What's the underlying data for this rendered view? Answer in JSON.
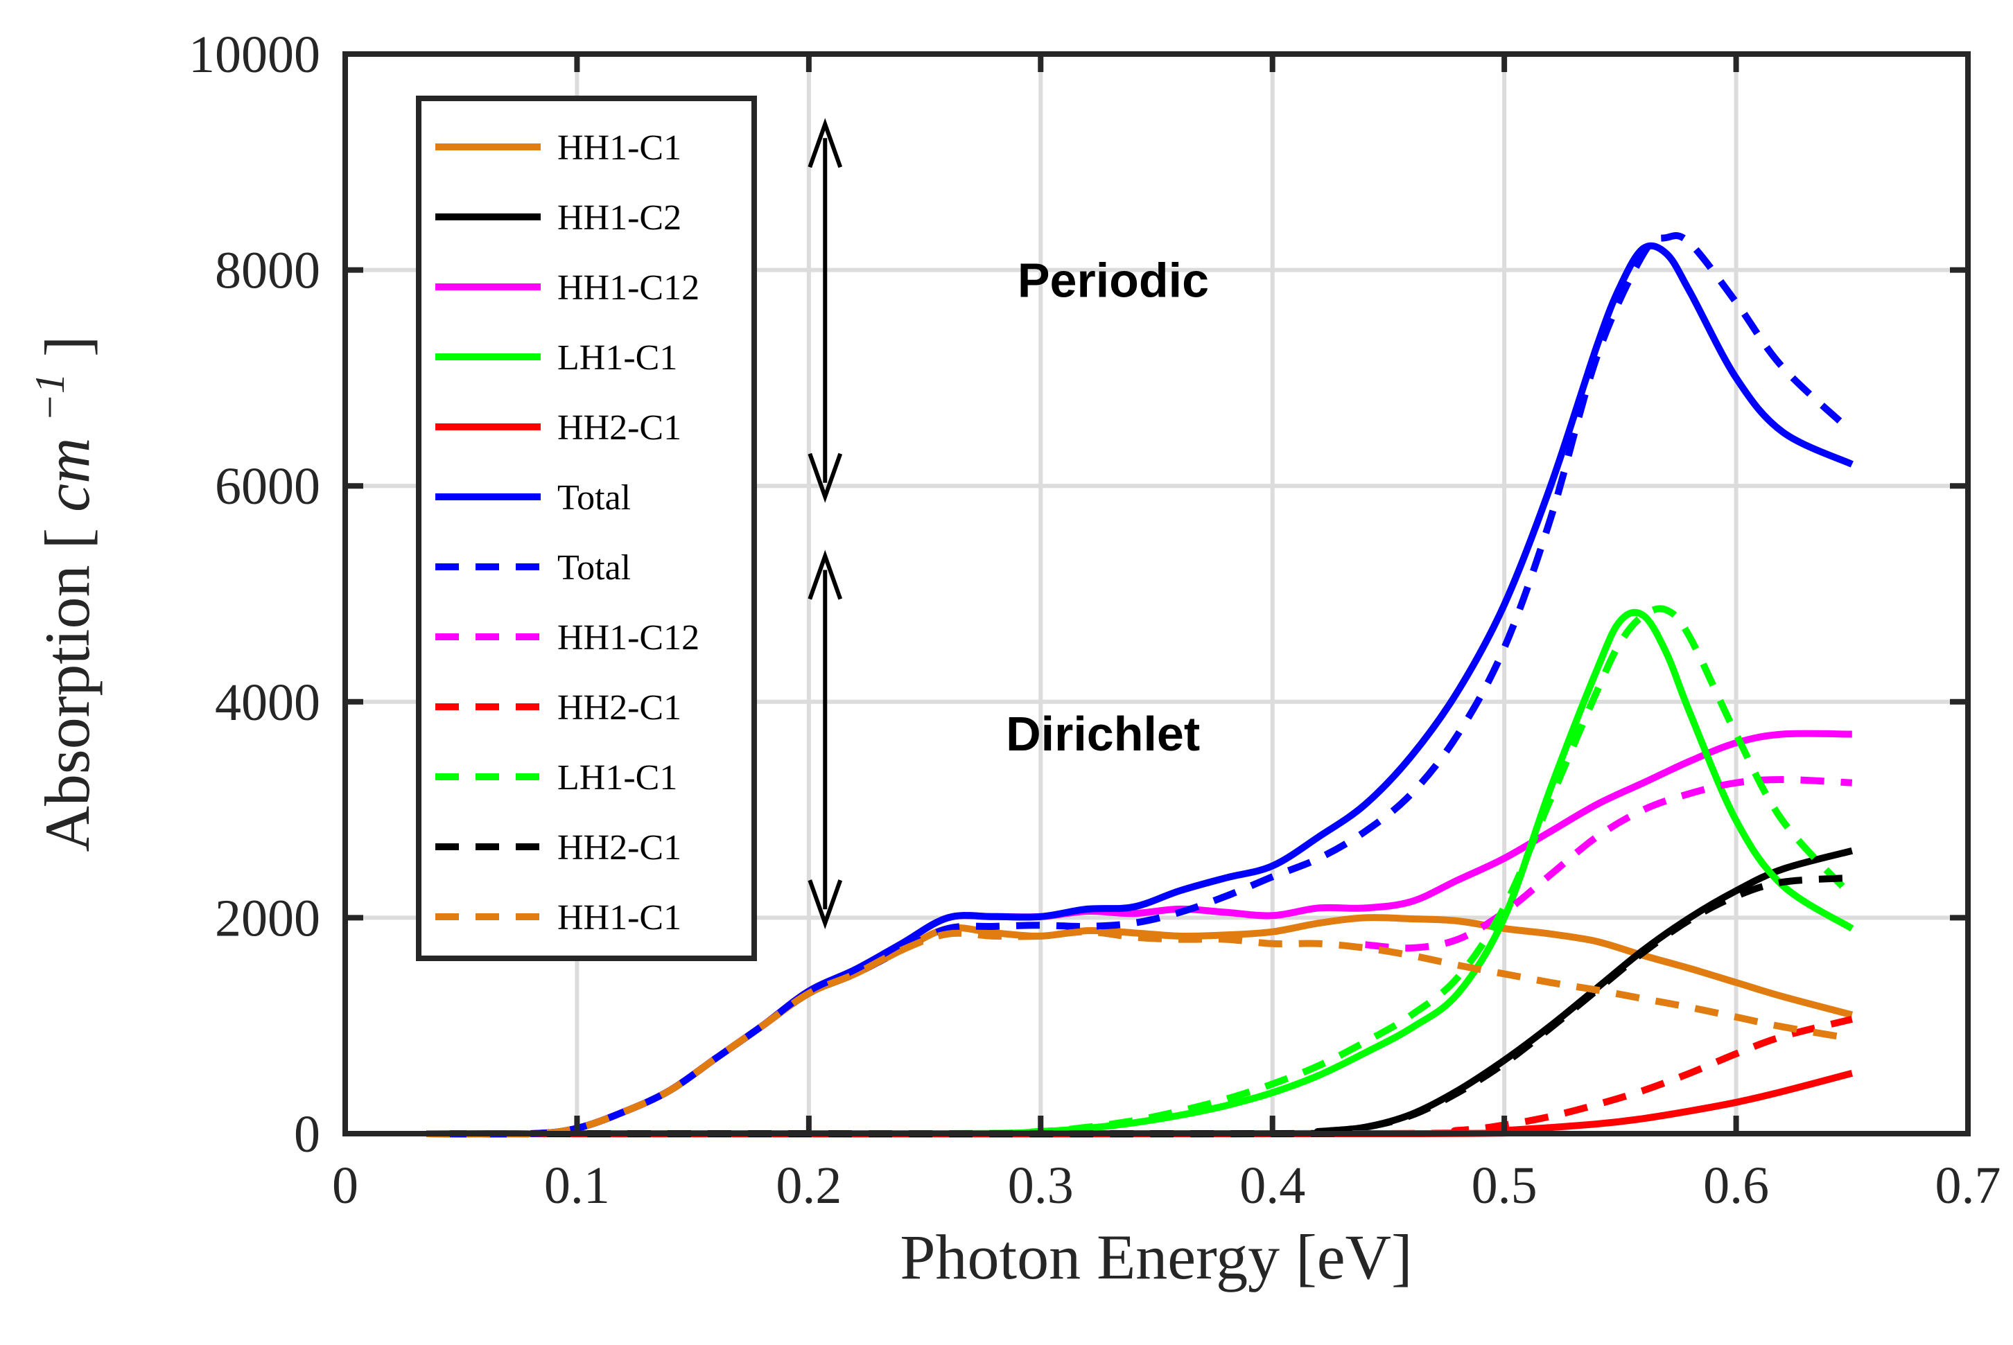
{
  "chart_data": {
    "type": "line",
    "title": "",
    "xlabel": "Photon Energy [eV]",
    "ylabel_text": "Absorption",
    "ylabel_unit": "cm",
    "ylabel_exponent": "−1",
    "xlim": [
      0,
      0.7
    ],
    "ylim": [
      0,
      10000
    ],
    "xticks": [
      0,
      0.1,
      0.2,
      0.3,
      0.4,
      0.5,
      0.6,
      0.7
    ],
    "xtick_labels": [
      "0",
      "0.1",
      "0.2",
      "0.3",
      "0.4",
      "0.5",
      "0.6",
      "0.7"
    ],
    "yticks": [
      0,
      2000,
      4000,
      6000,
      8000,
      10000
    ],
    "ytick_labels": [
      "0",
      "2000",
      "4000",
      "6000",
      "8000",
      "10000"
    ],
    "grid": true,
    "legend_position": "top-left",
    "annotations": [
      {
        "id": "periodic",
        "text": "Periodic",
        "x": 0.29,
        "y": 7750
      },
      {
        "id": "dirichlet",
        "text": "Dirichlet",
        "x": 0.285,
        "y": 3550
      }
    ],
    "arrows": [
      {
        "id": "periodic-arrow",
        "x": 0.207,
        "y1": 5900,
        "y2": 9350
      },
      {
        "id": "dirichlet-arrow",
        "x": 0.207,
        "y1": 1950,
        "y2": 5350
      }
    ],
    "series": [
      {
        "name": "HH1-C1",
        "style": "solid",
        "color": "#E07C10",
        "x": [
          0.035,
          0.08,
          0.1,
          0.12,
          0.14,
          0.16,
          0.18,
          0.2,
          0.22,
          0.24,
          0.26,
          0.28,
          0.3,
          0.32,
          0.34,
          0.36,
          0.38,
          0.4,
          0.42,
          0.44,
          0.46,
          0.48,
          0.5,
          0.52,
          0.54,
          0.56,
          0.58,
          0.6,
          0.62,
          0.65
        ],
        "y": [
          0,
          0,
          50,
          200,
          400,
          700,
          1000,
          1300,
          1480,
          1700,
          1900,
          1860,
          1830,
          1880,
          1860,
          1830,
          1840,
          1870,
          1950,
          2000,
          1990,
          1970,
          1900,
          1850,
          1780,
          1650,
          1530,
          1400,
          1270,
          1100
        ]
      },
      {
        "name": "HH1-C2",
        "style": "solid",
        "color": "#000000",
        "x": [
          0.035,
          0.4,
          0.42,
          0.44,
          0.46,
          0.48,
          0.5,
          0.52,
          0.54,
          0.56,
          0.58,
          0.6,
          0.62,
          0.65
        ],
        "y": [
          0,
          0,
          20,
          60,
          180,
          400,
          680,
          1000,
          1350,
          1700,
          2000,
          2250,
          2450,
          2620
        ]
      },
      {
        "name": "HH1-C12",
        "style": "solid",
        "color": "#FF00FF",
        "x": [
          0.035,
          0.08,
          0.1,
          0.12,
          0.14,
          0.16,
          0.18,
          0.2,
          0.22,
          0.24,
          0.26,
          0.28,
          0.3,
          0.32,
          0.34,
          0.36,
          0.38,
          0.4,
          0.42,
          0.44,
          0.46,
          0.48,
          0.5,
          0.52,
          0.54,
          0.56,
          0.58,
          0.6,
          0.62,
          0.65
        ],
        "y": [
          0,
          0,
          50,
          200,
          400,
          700,
          1000,
          1320,
          1520,
          1760,
          2000,
          2010,
          2010,
          2060,
          2040,
          2080,
          2050,
          2020,
          2090,
          2090,
          2150,
          2350,
          2550,
          2800,
          3050,
          3250,
          3450,
          3620,
          3700,
          3700
        ]
      },
      {
        "name": "LH1-C1",
        "style": "solid",
        "color": "#00FF00",
        "x": [
          0.035,
          0.26,
          0.3,
          0.32,
          0.34,
          0.36,
          0.38,
          0.4,
          0.42,
          0.44,
          0.46,
          0.48,
          0.5,
          0.52,
          0.54,
          0.55,
          0.56,
          0.57,
          0.58,
          0.6,
          0.62,
          0.65
        ],
        "y": [
          0,
          0,
          20,
          50,
          100,
          170,
          260,
          380,
          540,
          750,
          980,
          1300,
          2000,
          3200,
          4300,
          4750,
          4800,
          4450,
          3900,
          2900,
          2300,
          1900
        ]
      },
      {
        "name": "HH2-C1",
        "style": "solid",
        "color": "#FF0000",
        "x": [
          0.035,
          0.46,
          0.5,
          0.54,
          0.56,
          0.58,
          0.6,
          0.62,
          0.65
        ],
        "y": [
          0,
          0,
          30,
          90,
          140,
          210,
          290,
          390,
          560
        ]
      },
      {
        "name": "Total",
        "style": "solid",
        "color": "#0000FF",
        "x": [
          0.035,
          0.08,
          0.1,
          0.12,
          0.14,
          0.16,
          0.18,
          0.2,
          0.22,
          0.24,
          0.26,
          0.28,
          0.3,
          0.32,
          0.34,
          0.36,
          0.38,
          0.4,
          0.42,
          0.44,
          0.46,
          0.48,
          0.5,
          0.52,
          0.54,
          0.55,
          0.56,
          0.57,
          0.58,
          0.6,
          0.62,
          0.65
        ],
        "y": [
          0,
          0,
          50,
          200,
          400,
          700,
          1000,
          1320,
          1520,
          1760,
          2000,
          2010,
          2010,
          2080,
          2100,
          2250,
          2370,
          2480,
          2750,
          3050,
          3500,
          4100,
          4900,
          6000,
          7300,
          7850,
          8200,
          8150,
          7800,
          7000,
          6500,
          6200
        ]
      },
      {
        "name": "Total",
        "style": "dashed",
        "color": "#0000FF",
        "x": [
          0.035,
          0.08,
          0.1,
          0.12,
          0.14,
          0.16,
          0.18,
          0.2,
          0.22,
          0.24,
          0.26,
          0.28,
          0.3,
          0.32,
          0.34,
          0.36,
          0.38,
          0.4,
          0.42,
          0.44,
          0.46,
          0.48,
          0.5,
          0.52,
          0.54,
          0.56,
          0.57,
          0.58,
          0.6,
          0.62,
          0.65
        ],
        "y": [
          0,
          0,
          50,
          200,
          400,
          700,
          1000,
          1300,
          1480,
          1700,
          1900,
          1920,
          1930,
          1920,
          1950,
          2050,
          2200,
          2380,
          2550,
          2800,
          3150,
          3700,
          4500,
          5700,
          7200,
          8150,
          8300,
          8250,
          7700,
          7100,
          6500
        ]
      },
      {
        "name": "HH1-C12",
        "style": "dashed",
        "color": "#FF00FF",
        "x": [
          0.44,
          0.46,
          0.48,
          0.5,
          0.52,
          0.54,
          0.56,
          0.58,
          0.6,
          0.62,
          0.65
        ],
        "y": [
          1750,
          1720,
          1800,
          2050,
          2400,
          2750,
          3000,
          3150,
          3250,
          3280,
          3250
        ]
      },
      {
        "name": "HH2-C1",
        "style": "dashed",
        "color": "#FF0000",
        "x": [
          0.035,
          0.44,
          0.48,
          0.5,
          0.52,
          0.54,
          0.56,
          0.58,
          0.6,
          0.62,
          0.65
        ],
        "y": [
          0,
          0,
          30,
          80,
          160,
          270,
          400,
          560,
          740,
          900,
          1060
        ]
      },
      {
        "name": "LH1-C1",
        "style": "dashed",
        "color": "#00FF00",
        "x": [
          0.035,
          0.26,
          0.3,
          0.32,
          0.34,
          0.36,
          0.38,
          0.4,
          0.42,
          0.44,
          0.46,
          0.48,
          0.5,
          0.52,
          0.54,
          0.55,
          0.56,
          0.57,
          0.58,
          0.6,
          0.62,
          0.65
        ],
        "y": [
          0,
          0,
          20,
          60,
          120,
          210,
          320,
          460,
          630,
          850,
          1100,
          1450,
          2100,
          3100,
          4100,
          4550,
          4800,
          4850,
          4600,
          3700,
          2900,
          2200
        ]
      },
      {
        "name": "HH2-C1",
        "style": "dashed",
        "color": "#000000",
        "x": [
          0.035,
          0.4,
          0.42,
          0.44,
          0.46,
          0.48,
          0.5,
          0.52,
          0.54,
          0.56,
          0.58,
          0.6,
          0.62,
          0.65
        ],
        "y": [
          0,
          0,
          20,
          60,
          170,
          380,
          650,
          980,
          1330,
          1680,
          1980,
          2200,
          2330,
          2370
        ]
      },
      {
        "name": "HH1-C1",
        "style": "dashed",
        "color": "#E07C10",
        "x": [
          0.035,
          0.08,
          0.1,
          0.12,
          0.14,
          0.16,
          0.18,
          0.2,
          0.22,
          0.24,
          0.26,
          0.28,
          0.3,
          0.32,
          0.34,
          0.36,
          0.38,
          0.4,
          0.42,
          0.44,
          0.46,
          0.48,
          0.5,
          0.52,
          0.54,
          0.56,
          0.58,
          0.6,
          0.62,
          0.65
        ],
        "y": [
          0,
          0,
          50,
          200,
          400,
          700,
          1000,
          1300,
          1480,
          1700,
          1850,
          1830,
          1830,
          1870,
          1820,
          1800,
          1800,
          1760,
          1760,
          1720,
          1650,
          1560,
          1480,
          1400,
          1330,
          1250,
          1170,
          1080,
          990,
          880
        ]
      }
    ],
    "legend_order": [
      {
        "label": "HH1-C1",
        "style": "solid",
        "color": "#E07C10"
      },
      {
        "label": "HH1-C2",
        "style": "solid",
        "color": "#000000"
      },
      {
        "label": "HH1-C12",
        "style": "solid",
        "color": "#FF00FF"
      },
      {
        "label": "LH1-C1",
        "style": "solid",
        "color": "#00FF00"
      },
      {
        "label": "HH2-C1",
        "style": "solid",
        "color": "#FF0000"
      },
      {
        "label": "Total",
        "style": "solid",
        "color": "#0000FF"
      },
      {
        "label": "Total",
        "style": "dashed",
        "color": "#0000FF"
      },
      {
        "label": "HH1-C12",
        "style": "dashed",
        "color": "#FF00FF"
      },
      {
        "label": "HH2-C1",
        "style": "dashed",
        "color": "#FF0000"
      },
      {
        "label": "LH1-C1",
        "style": "dashed",
        "color": "#00FF00"
      },
      {
        "label": "HH2-C1",
        "style": "dashed",
        "color": "#000000"
      },
      {
        "label": "HH1-C1",
        "style": "dashed",
        "color": "#E07C10"
      }
    ]
  }
}
